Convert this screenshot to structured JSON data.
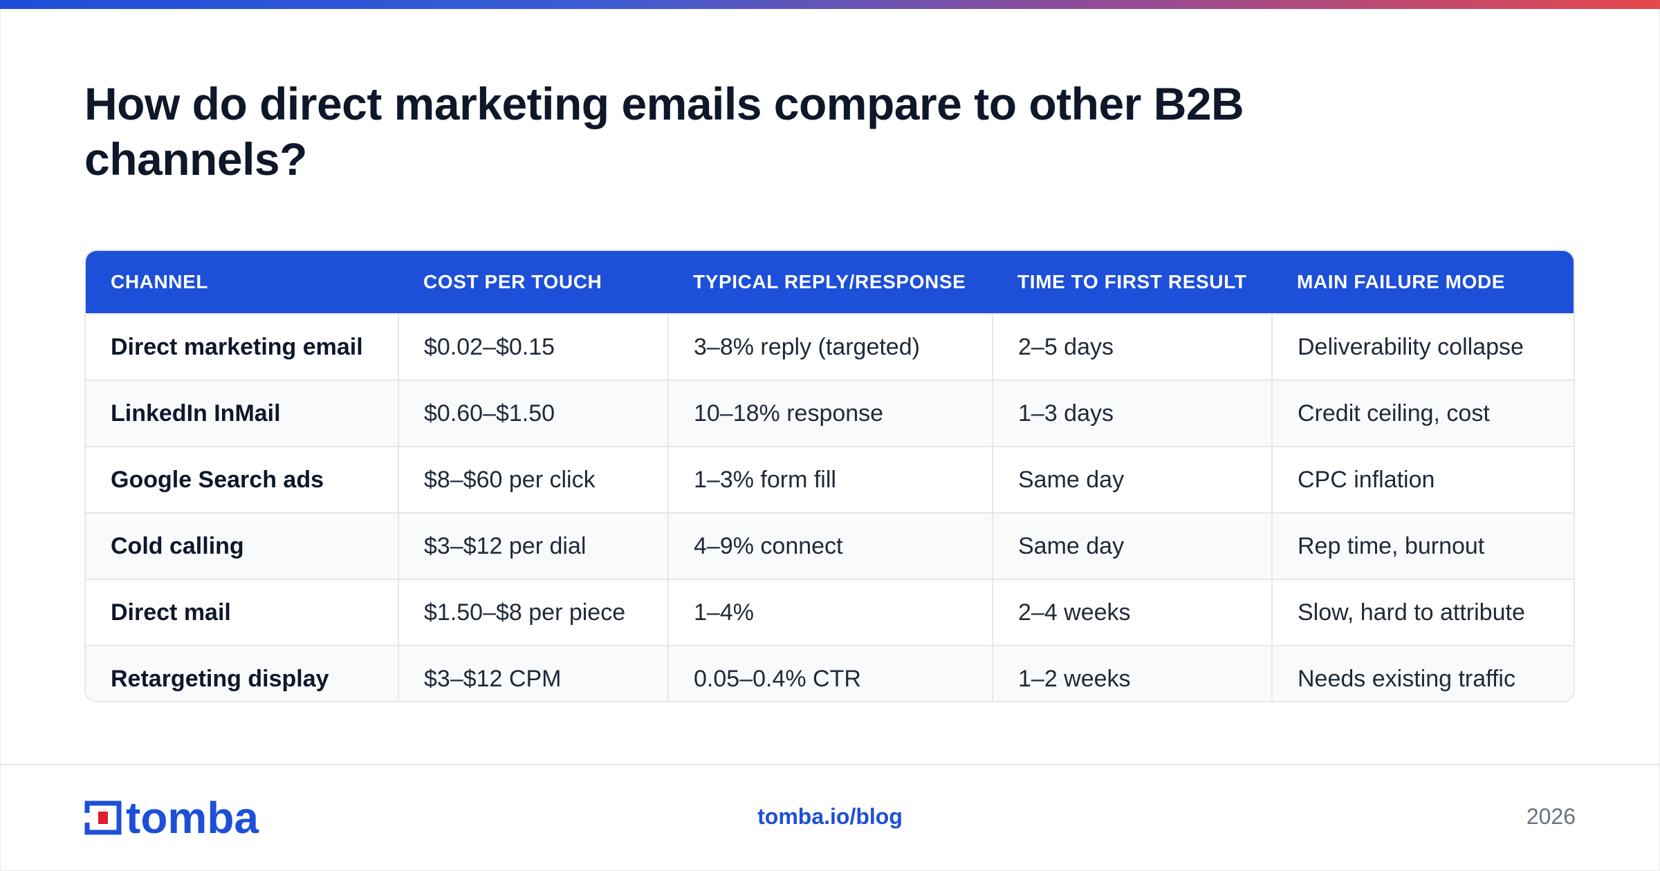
{
  "title": "How do direct marketing emails compare to other B2B channels?",
  "colors": {
    "accent": "#1d4fd8",
    "logo_red": "#e11d2e",
    "header_text": "#ffffff"
  },
  "table": {
    "headers": [
      "CHANNEL",
      "COST PER TOUCH",
      "TYPICAL REPLY/RESPONSE",
      "TIME TO FIRST RESULT",
      "MAIN FAILURE MODE"
    ],
    "rows": [
      [
        "Direct marketing email",
        "$0.02–$0.15",
        "3–8% reply (targeted)",
        "2–5 days",
        "Deliverability collapse"
      ],
      [
        "LinkedIn InMail",
        "$0.60–$1.50",
        "10–18% response",
        "1–3 days",
        "Credit ceiling, cost"
      ],
      [
        "Google Search ads",
        "$8–$60 per click",
        "1–3% form fill",
        "Same day",
        "CPC inflation"
      ],
      [
        "Cold calling",
        "$3–$12 per dial",
        "4–9% connect",
        "Same day",
        "Rep time, burnout"
      ],
      [
        "Direct mail",
        "$1.50–$8 per piece",
        "1–4%",
        "2–4 weeks",
        "Slow, hard to attribute"
      ],
      [
        "Retargeting display",
        "$3–$12 CPM",
        "0.05–0.4% CTR",
        "1–2 weeks",
        "Needs existing traffic"
      ]
    ]
  },
  "footer": {
    "logo_text": "tomba",
    "url": "tomba.io/blog",
    "year": "2026"
  }
}
